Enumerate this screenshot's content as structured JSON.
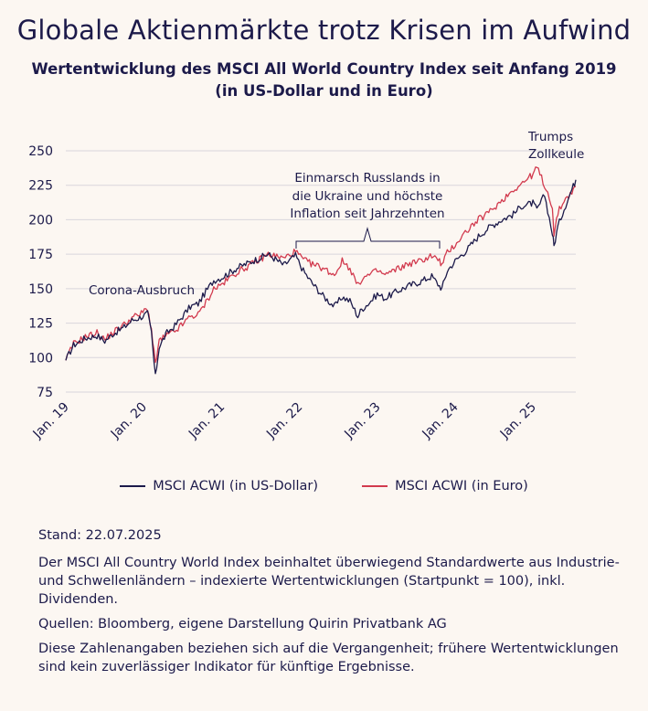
{
  "title": "Globale Aktienmärkte trotz Krisen im Aufwind",
  "subtitle_line1": "Wertentwicklung des MSCI All World Country Index seit Anfang 2019",
  "subtitle_line2": "(in US-Dollar und in Euro)",
  "legend": {
    "usd_label": "MSCI ACWI (in US-Dollar)",
    "eur_label": "MSCI ACWI (in Euro)"
  },
  "annotations": {
    "corona": "Corona-Ausbruch",
    "ukraine_line1": "Einmarsch Russlands in",
    "ukraine_line2": "die Ukraine und höchste",
    "ukraine_line3": "Inflation seit Jahrzehnten",
    "trump_line1": "Trumps",
    "trump_line2": "Zollkeule"
  },
  "footnotes": {
    "stand": "Stand: 22.07.2025",
    "description": "Der MSCI All Country World Index beinhaltet überwiegend Standardwerte aus Industrie- und Schwellenländern – indexierte Wertentwicklungen (Startpunkt = 100), inkl. Dividenden.",
    "sources": "Quellen: Bloomberg, eigene Darstellung Quirin Privatbank AG",
    "disclaimer": "Diese Zahlenangaben beziehen sich auf die Vergangenheit; frühere Wertentwicklungen sind kein zuverlässiger Indikator für künftige Ergebnisse."
  },
  "colors": {
    "usd": "#1c1a4a",
    "eur": "#d23a4e",
    "grid": "#d9d6dc",
    "background": "#fcf7f2"
  },
  "chart_data": {
    "type": "line",
    "x_unit": "years since Jan. 2019",
    "xlim": [
      0,
      6.55
    ],
    "ylim": [
      75,
      250
    ],
    "y_ticks": [
      75,
      100,
      125,
      150,
      175,
      200,
      225,
      250
    ],
    "x_tick_labels": [
      "Jan. 19",
      "Jan. 20",
      "Jan. 21",
      "Jan. 22",
      "Jan. 23",
      "Jan. 24",
      "Jan. 25"
    ],
    "grid": "horizontal",
    "legend_position": "bottom",
    "series": [
      {
        "name": "MSCI ACWI (in US-Dollar)",
        "color": "#1c1a4a",
        "x": [
          0,
          0.1,
          0.25,
          0.4,
          0.5,
          0.6,
          0.75,
          0.85,
          0.95,
          1.05,
          1.1,
          1.15,
          1.2,
          1.25,
          1.3,
          1.4,
          1.5,
          1.6,
          1.7,
          1.8,
          1.9,
          2.0,
          2.2,
          2.4,
          2.6,
          2.8,
          2.95,
          3.05,
          3.15,
          3.3,
          3.45,
          3.55,
          3.65,
          3.75,
          3.8,
          3.9,
          4.0,
          4.1,
          4.25,
          4.4,
          4.55,
          4.7,
          4.8,
          4.83,
          4.9,
          5.0,
          5.15,
          5.3,
          5.45,
          5.6,
          5.75,
          5.85,
          6.0,
          6.05,
          6.15,
          6.25,
          6.27,
          6.32,
          6.4,
          6.5,
          6.55
        ],
        "y": [
          98,
          109,
          114,
          116,
          112,
          117,
          122,
          127,
          129,
          132,
          118,
          86,
          108,
          113,
          118,
          123,
          130,
          137,
          139,
          148,
          156,
          158,
          165,
          170,
          175,
          167,
          174,
          163,
          155,
          145,
          137,
          144,
          141,
          130,
          135,
          140,
          146,
          143,
          148,
          152,
          155,
          159,
          152,
          150,
          163,
          170,
          178,
          188,
          195,
          200,
          204,
          210,
          212,
          207,
          218,
          190,
          181,
          195,
          208,
          222,
          229
        ]
      },
      {
        "name": "MSCI ACWI (in Euro)",
        "color": "#d23a4e",
        "x": [
          0,
          0.1,
          0.25,
          0.4,
          0.5,
          0.6,
          0.75,
          0.85,
          0.95,
          1.05,
          1.1,
          1.15,
          1.2,
          1.25,
          1.3,
          1.4,
          1.5,
          1.6,
          1.7,
          1.8,
          1.9,
          2.0,
          2.2,
          2.4,
          2.6,
          2.8,
          2.95,
          3.05,
          3.15,
          3.3,
          3.45,
          3.55,
          3.65,
          3.75,
          3.8,
          3.9,
          4.0,
          4.1,
          4.25,
          4.4,
          4.55,
          4.7,
          4.8,
          4.83,
          4.9,
          5.0,
          5.15,
          5.3,
          5.45,
          5.6,
          5.75,
          5.85,
          6.0,
          6.05,
          6.15,
          6.25,
          6.27,
          6.32,
          6.4,
          6.5,
          6.55
        ],
        "y": [
          98,
          110,
          115,
          118,
          113,
          118,
          124,
          129,
          131,
          136,
          120,
          95,
          112,
          114,
          116,
          119,
          124,
          130,
          131,
          140,
          150,
          153,
          162,
          168,
          175,
          172,
          177,
          171,
          168,
          165,
          160,
          170,
          165,
          152,
          157,
          160,
          163,
          160,
          164,
          168,
          170,
          174,
          170,
          167,
          176,
          182,
          192,
          200,
          206,
          214,
          222,
          226,
          233,
          238,
          225,
          210,
          188,
          205,
          214,
          220,
          224
        ]
      }
    ]
  }
}
